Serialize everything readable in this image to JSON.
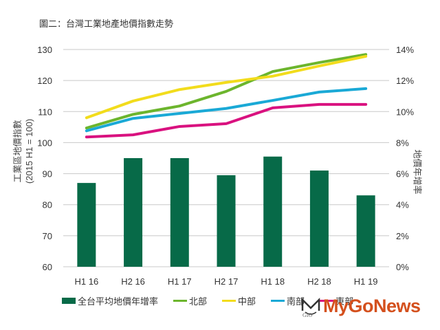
{
  "title": "圖二：台灣工業地產地價指數走勢",
  "chart_data": {
    "type": "bar+line",
    "title": "圖二：台灣工業地產地價指數走勢",
    "categories": [
      "H1 16",
      "H2 16",
      "H1 17",
      "H2 17",
      "H1 18",
      "H2 18",
      "H1 19"
    ],
    "ylabel_left": "工業區地價指數 (2015 H1 = 100)",
    "ylabel_left_line1": "工業區地價指數",
    "ylabel_left_line2": "(2015 H1 = 100)",
    "ylabel_right": "地價年增率",
    "ylim_left": [
      60,
      130
    ],
    "ylim_right": [
      0,
      14
    ],
    "yticks_left": [
      "130",
      "120",
      "110",
      "100",
      "90",
      "80",
      "70",
      "60"
    ],
    "yticks_right": [
      "14%",
      "12%",
      "10%",
      "8%",
      "6%",
      "4%",
      "2%",
      "0%"
    ],
    "grid": true,
    "legend_position": "bottom",
    "bar_series": {
      "name": "全台平均地價年增率",
      "axis": "right",
      "color": "#076a48",
      "values": [
        5.4,
        7.0,
        7.0,
        5.9,
        7.1,
        6.2,
        4.6
      ]
    },
    "line_series": [
      {
        "name": "北部",
        "axis": "left",
        "color": "#6cb52d",
        "values": [
          104.7,
          109.1,
          111.8,
          116.5,
          122.9,
          125.8,
          128.4
        ]
      },
      {
        "name": "中部",
        "axis": "left",
        "color": "#f2dc1c",
        "values": [
          108.0,
          113.4,
          117.1,
          119.4,
          121.4,
          124.7,
          127.8
        ]
      },
      {
        "name": "南部",
        "axis": "left",
        "color": "#1aa9d6",
        "values": [
          103.8,
          107.8,
          109.4,
          111.0,
          113.6,
          116.3,
          117.4
        ]
      },
      {
        "name": "東部",
        "axis": "left",
        "color": "#d9117f",
        "values": [
          101.8,
          102.5,
          105.2,
          106.1,
          111.2,
          112.3,
          112.3
        ]
      }
    ]
  },
  "legend": {
    "items": [
      {
        "label": "全台平均地價年增率",
        "type": "bar",
        "color": "#076a48"
      },
      {
        "label": "北部",
        "type": "line",
        "color": "#6cb52d"
      },
      {
        "label": "中部",
        "type": "line",
        "color": "#f2dc1c"
      },
      {
        "label": "南部",
        "type": "line",
        "color": "#1aa9d6"
      },
      {
        "label": "東部",
        "type": "line",
        "color": "#d9117f"
      }
    ]
  },
  "watermark": {
    "text": "MyGoNews",
    "sub": "GIO"
  }
}
